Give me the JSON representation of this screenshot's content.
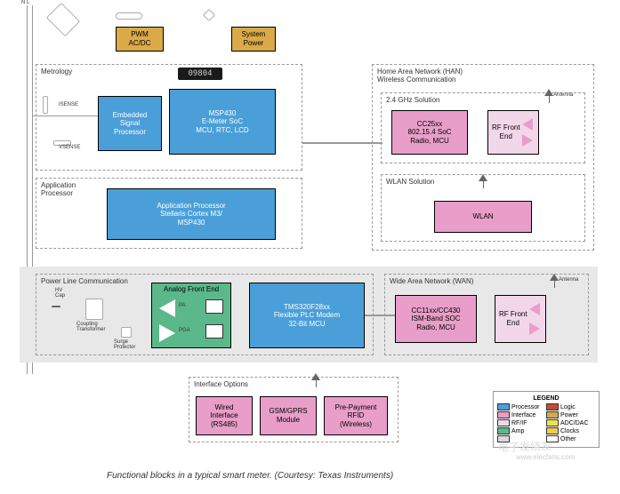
{
  "colors": {
    "processor": "#4a9fd8",
    "interface": "#e89ec9",
    "power": "#d9a94a",
    "rfif": "#f2d7ea",
    "amp": "#5ab88a",
    "logic": "#c94a3a",
    "adcdac": "#f2e24a",
    "clocks": "#f2c94a",
    "other": "#d9d9d9",
    "gray_band": "#e8e8e8",
    "white": "#ffffff"
  },
  "top": {
    "nl": "N L",
    "pwm": "PWM\nAC/DC",
    "sys_power": "System\nPower"
  },
  "metrology": {
    "title": "Metrology",
    "isense": "ISENSE",
    "vsense": "VSENSE",
    "esp": "Embedded\nSignal\nProcessor",
    "msp430": "MSP430\nE-Meter SoC\nMCU, RTC, LCD",
    "lcd": "09804"
  },
  "app_proc": {
    "title": "Application\nProcessor",
    "block": "Application Processor\nStellaris Cortex M3/\nMSP430"
  },
  "plc": {
    "title": "Power Line Communication",
    "hv_cap": "HV\nCap",
    "coupling": "Coupling\nTransformer",
    "surge": "Surge\nProtector",
    "afe": "Analog Front End",
    "pa": "PA",
    "pga": "PGA",
    "modem": "TMS320F28xx\nFlexible PLC Modem\n32-Bit MCU"
  },
  "han": {
    "title": "Home Area Network (HAN)\nWireless Communication",
    "sol_24": "2.4 GHz Solution",
    "cc25xx": "CC25xx\n802.15.4 SoC\nRadio, MCU",
    "rf1": "RF Front\nEnd",
    "wlan_sol": "WLAN Solution",
    "wlan": "WLAN",
    "antenna": "Antenna"
  },
  "wan": {
    "title": "Wide Area Network (WAN)",
    "cc11xx": "CC11xx/CC430\nISM-Band SOC\nRadio, MCU",
    "rf": "RF Front\nEnd",
    "antenna": "Antenna"
  },
  "iface": {
    "title": "Interface Options",
    "wired": "Wired\nInterface\n(RS485)",
    "gsm": "GSM/GPRS\nModule",
    "rfid": "Pre-Payment\nRFID\n(Wireless)"
  },
  "legend": {
    "title": "LEGEND",
    "items": [
      {
        "label": "Processor",
        "color": "#4a9fd8"
      },
      {
        "label": "Logic",
        "color": "#c94a3a"
      },
      {
        "label": "Interface",
        "color": "#e89ec9"
      },
      {
        "label": "Power",
        "color": "#d9a94a"
      },
      {
        "label": "RF/IF",
        "color": "#f2d7ea"
      },
      {
        "label": "ADC/DAC",
        "color": "#f2e24a"
      },
      {
        "label": "Amp",
        "color": "#5ab88a"
      },
      {
        "label": "Clocks",
        "color": "#f2c94a"
      },
      {
        "label": "",
        "color": "#d9d9d9"
      },
      {
        "label": "Other",
        "color": "#ffffff"
      }
    ]
  },
  "caption": "Functional blocks in a typical smart meter. (Courtesy: Texas Instruments)",
  "watermark": "电子发烧友",
  "site": "www.elecfans.com"
}
